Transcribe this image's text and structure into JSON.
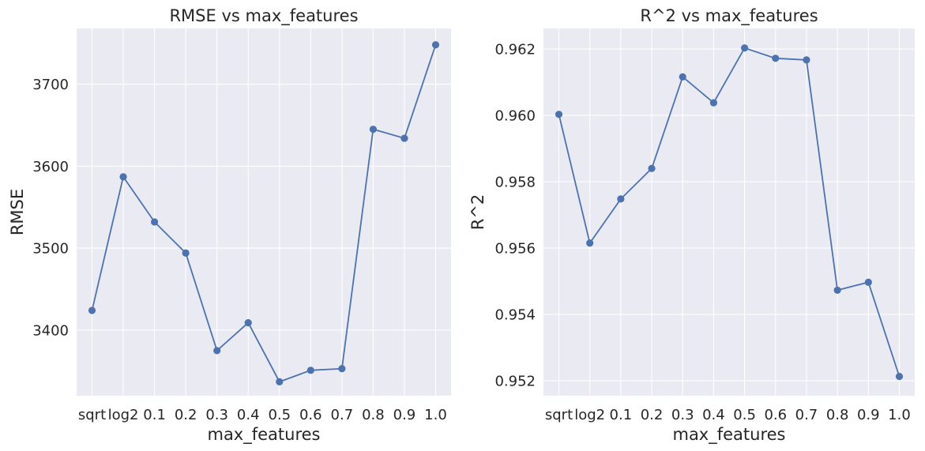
{
  "chart_data": [
    {
      "type": "line",
      "title": "RMSE vs max_features",
      "xlabel": "max_features",
      "ylabel": "RMSE",
      "categories": [
        "sqrt",
        "log2",
        "0.1",
        "0.2",
        "0.3",
        "0.4",
        "0.5",
        "0.6",
        "0.7",
        "0.8",
        "0.9",
        "1.0"
      ],
      "values": [
        3424,
        3587,
        3532,
        3494,
        3375,
        3409,
        3337,
        3351,
        3353,
        3645,
        3634,
        3748
      ],
      "ylim": [
        3320,
        3768
      ],
      "yticks": [
        "3400",
        "3500",
        "3600",
        "3700"
      ],
      "marker": "circle",
      "color": "#4c72b0",
      "grid": true
    },
    {
      "type": "line",
      "title": "R^2 vs max_features",
      "xlabel": "max_features",
      "ylabel": "R^2",
      "categories": [
        "sqrt",
        "log2",
        "0.1",
        "0.2",
        "0.3",
        "0.4",
        "0.5",
        "0.6",
        "0.7",
        "0.8",
        "0.9",
        "1.0"
      ],
      "values": [
        0.96003,
        0.95615,
        0.95748,
        0.9584,
        0.96116,
        0.96038,
        0.96203,
        0.96172,
        0.96167,
        0.95473,
        0.95497,
        0.95213
      ],
      "ylim": [
        0.95155,
        0.96262
      ],
      "yticks": [
        "0.952",
        "0.954",
        "0.956",
        "0.958",
        "0.960",
        "0.962"
      ],
      "marker": "circle",
      "color": "#4c72b0",
      "grid": true
    }
  ]
}
